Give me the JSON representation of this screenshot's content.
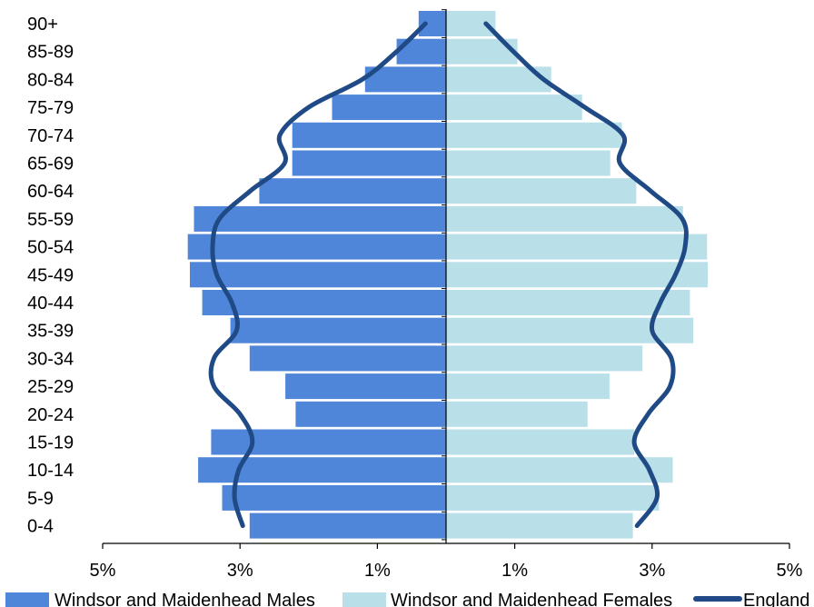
{
  "chart_data": {
    "type": "bar",
    "orientation": "horizontal-population-pyramid",
    "categories": [
      "0-4",
      "5-9",
      "10-14",
      "15-19",
      "20-24",
      "25-29",
      "30-34",
      "35-39",
      "40-44",
      "45-49",
      "50-54",
      "55-59",
      "60-64",
      "65-69",
      "70-74",
      "75-79",
      "80-84",
      "85-89",
      "90+"
    ],
    "series": [
      {
        "name": "Windsor and Maidenhead Males",
        "color": "#4f86d9",
        "kind": "bar",
        "side": "left",
        "values": [
          2.86,
          3.26,
          3.61,
          3.42,
          2.19,
          2.34,
          2.86,
          3.14,
          3.55,
          3.73,
          3.76,
          3.67,
          2.72,
          2.24,
          2.24,
          1.66,
          1.18,
          0.72,
          0.4
        ]
      },
      {
        "name": "Windsor and Maidenhead Females",
        "color": "#b9dfe8",
        "kind": "bar",
        "side": "right",
        "values": [
          2.72,
          3.1,
          3.3,
          2.74,
          2.06,
          2.38,
          2.86,
          3.6,
          3.55,
          3.81,
          3.8,
          3.45,
          2.77,
          2.39,
          2.56,
          1.98,
          1.53,
          1.04,
          0.72
        ]
      },
      {
        "name": "England",
        "color": "#1f4a86",
        "kind": "line",
        "left_values": [
          2.96,
          3.08,
          3.02,
          2.82,
          3.0,
          3.38,
          3.38,
          3.05,
          3.12,
          3.34,
          3.4,
          3.3,
          2.85,
          2.35,
          2.42,
          2.0,
          1.22,
          0.72,
          0.3
        ],
        "right_values": [
          2.78,
          3.07,
          2.96,
          2.74,
          2.94,
          3.26,
          3.28,
          3.0,
          3.12,
          3.34,
          3.48,
          3.44,
          2.98,
          2.53,
          2.58,
          2.02,
          1.42,
          0.98,
          0.58
        ]
      }
    ],
    "x_ticks": [
      "5%",
      "3%",
      "1%",
      "1%",
      "3%",
      "5%"
    ],
    "x_tick_values": [
      -5,
      -3,
      -1,
      1,
      3,
      5
    ],
    "xlim": [
      -5,
      5
    ],
    "grid": false,
    "legend_position": "bottom"
  }
}
